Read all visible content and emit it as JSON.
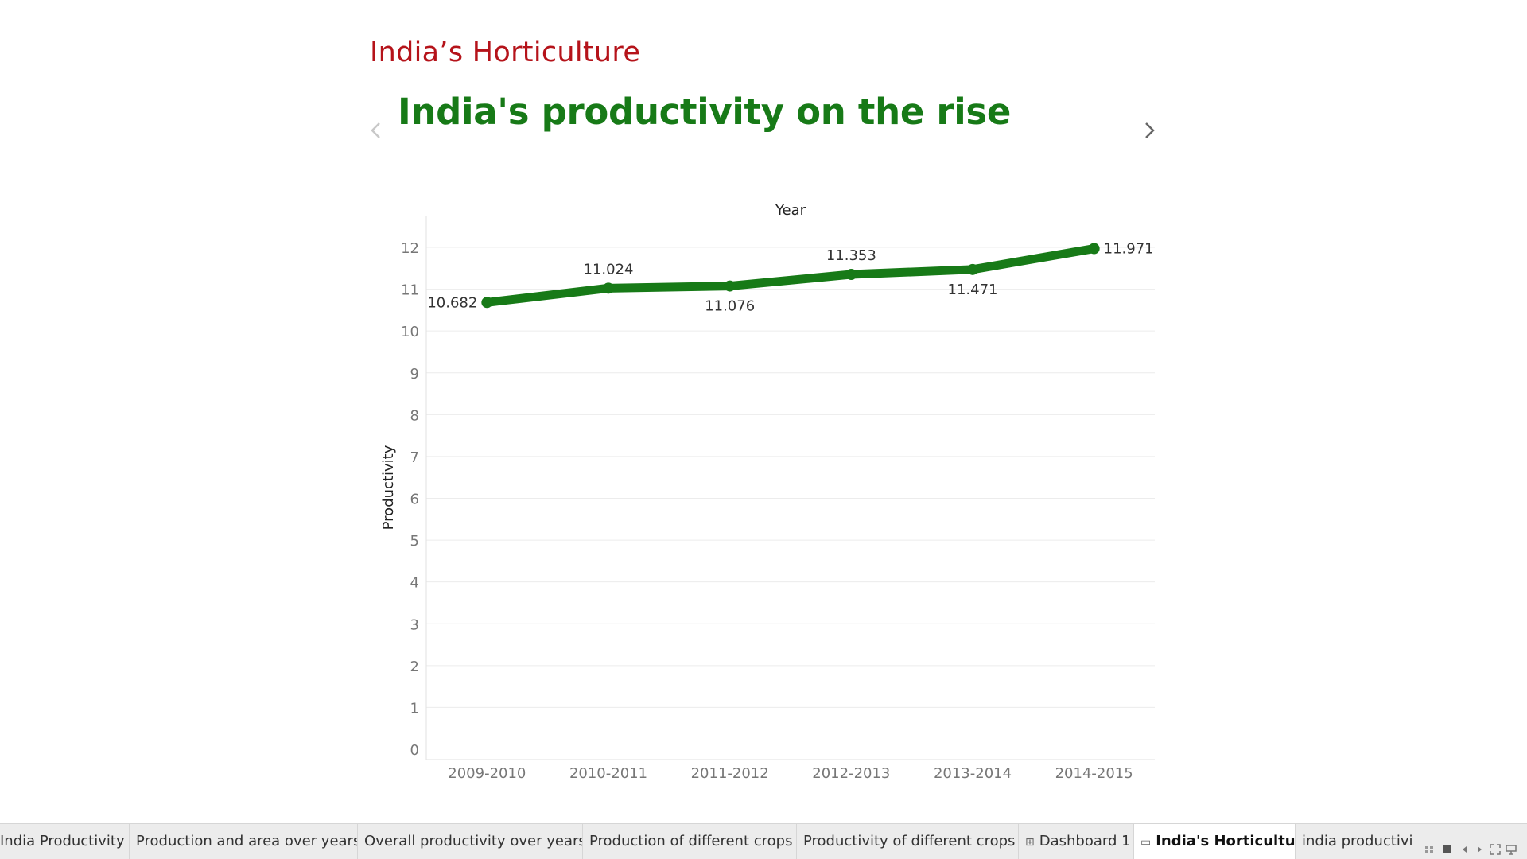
{
  "story": {
    "title": "India’s Horticulture",
    "headline": "India's productivity on the rise"
  },
  "navigation": {
    "prev_icon": "chevron-left-icon",
    "next_icon": "chevron-right-icon"
  },
  "colors": {
    "title": "#b5131a",
    "headline": "#177a17",
    "series": "#177a17",
    "gridline": "#ececec"
  },
  "chart_data": {
    "type": "line",
    "title": "",
    "xlabel": "Year",
    "ylabel": "Productivity",
    "x_axis_position": "top",
    "categories": [
      "2009-2010",
      "2010-2011",
      "2011-2012",
      "2012-2013",
      "2013-2014",
      "2014-2015"
    ],
    "series": [
      {
        "values": [
          10.682,
          11.024,
          11.076,
          11.353,
          11.471,
          11.971
        ],
        "labels": [
          "10.682",
          "11.024",
          "11.076",
          "11.353",
          "11.471",
          "11.971"
        ],
        "color": "#177a17"
      }
    ],
    "ylim": [
      0,
      12
    ],
    "yticks": [
      0,
      1,
      2,
      3,
      4,
      5,
      6,
      7,
      8,
      9,
      10,
      11,
      12
    ],
    "grid": true,
    "legend": "none"
  },
  "tabs": [
    {
      "label": "India Productivity",
      "icon": "",
      "active": false
    },
    {
      "label": "Production and area over years",
      "icon": "",
      "active": false
    },
    {
      "label": "Overall productivity over years",
      "icon": "",
      "active": false
    },
    {
      "label": "Production of different crops",
      "icon": "",
      "active": false
    },
    {
      "label": "Productivity of different crops",
      "icon": "",
      "active": false
    },
    {
      "label": "Dashboard 1",
      "icon": "dashboard-icon",
      "icon_glyph": "⊞",
      "active": false
    },
    {
      "label": "India's Horticulture",
      "icon": "story-icon",
      "icon_glyph": "▭",
      "active": true
    },
    {
      "label": "india productivity",
      "icon": "",
      "active": false
    }
  ],
  "toolbar": {
    "icons": [
      "sheet-sorter-icon",
      "filmstrip-icon",
      "scroll-left-icon",
      "scroll-right-icon",
      "fullscreen-icon",
      "presentation-icon"
    ]
  }
}
